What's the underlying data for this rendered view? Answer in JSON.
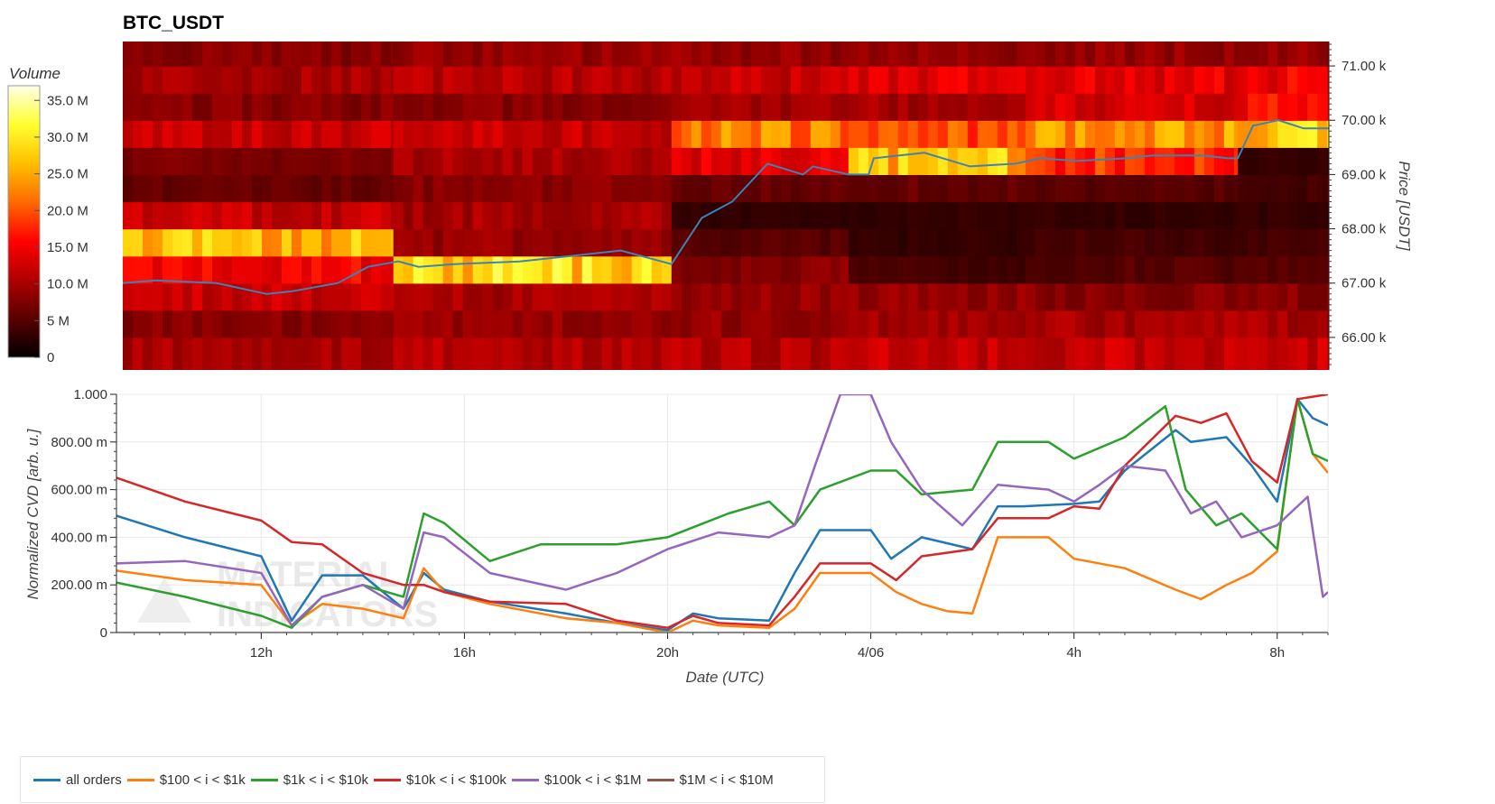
{
  "chart_data": [
    {
      "type": "heatmap",
      "title": "BTC_USDT",
      "ylabel": "Price [USDT]",
      "ylim": [
        65400,
        71450
      ],
      "y_ticks": [
        {
          "value": 66000,
          "label": "66.00 k"
        },
        {
          "value": 67000,
          "label": "67.00 k"
        },
        {
          "value": 68000,
          "label": "68.00 k"
        },
        {
          "value": 69000,
          "label": "69.00 k"
        },
        {
          "value": 70000,
          "label": "70.00 k"
        },
        {
          "value": 71000,
          "label": "71.00 k"
        }
      ],
      "colorbar": {
        "title": "Volume",
        "range": [
          0,
          37000000
        ],
        "ticks": [
          {
            "value": 0,
            "label": "0"
          },
          {
            "value": 5000000,
            "label": "5 M"
          },
          {
            "value": 10000000,
            "label": "10.0 M"
          },
          {
            "value": 15000000,
            "label": "15.0 M"
          },
          {
            "value": 20000000,
            "label": "20.0 M"
          },
          {
            "value": 25000000,
            "label": "25.0 M"
          },
          {
            "value": 30000000,
            "label": "30.0 M"
          },
          {
            "value": 35000000,
            "label": "35.0 M"
          }
        ],
        "colors": [
          "#000000",
          "#5a0000",
          "#b00000",
          "#ff0000",
          "#ff6a00",
          "#ffc000",
          "#ffff30",
          "#ffffe8"
        ]
      },
      "x_range": [
        -2.85,
        21.0
      ],
      "price_bins": [
        65400,
        66000,
        66500,
        67000,
        67500,
        68000,
        68500,
        69000,
        69500,
        70000,
        70500,
        71000,
        71450
      ],
      "volume_pattern": [
        {
          "x_start": -2.85,
          "x_end": 2.5,
          "levels": [
            10,
            8,
            12,
            15,
            26,
            12,
            6,
            7,
            12,
            8,
            10,
            8
          ]
        },
        {
          "x_start": 2.5,
          "x_end": 8.0,
          "levels": [
            11,
            9,
            10,
            28,
            9,
            10,
            8,
            10,
            12,
            8,
            11,
            9
          ]
        },
        {
          "x_start": 8.0,
          "x_end": 11.5,
          "levels": [
            11,
            9,
            9,
            8,
            5,
            3,
            6,
            14,
            22,
            10,
            12,
            9
          ]
        },
        {
          "x_start": 11.5,
          "x_end": 15.0,
          "levels": [
            12,
            10,
            9,
            4,
            3,
            3,
            6,
            26,
            20,
            10,
            14,
            9
          ]
        },
        {
          "x_start": 15.0,
          "x_end": 19.2,
          "levels": [
            12,
            10,
            8,
            5,
            4,
            3,
            5,
            18,
            24,
            13,
            14,
            9
          ]
        },
        {
          "x_start": 19.2,
          "x_end": 21.0,
          "levels": [
            12,
            10,
            8,
            5,
            4,
            3,
            4,
            3,
            28,
            16,
            15,
            9
          ]
        }
      ],
      "price_series": {
        "x": [
          -2.85,
          -2.2,
          -1.0,
          0.0,
          0.5,
          1.4,
          2.0,
          2.6,
          3.0,
          3.7,
          5.0,
          6.0,
          7.0,
          8.0,
          8.6,
          9.2,
          9.9,
          10.6,
          10.8,
          11.5,
          11.9,
          12.0,
          13.0,
          13.9,
          14.8,
          15.3,
          16.0,
          17.0,
          17.5,
          18.5,
          19.0,
          19.2,
          19.5,
          20.0,
          20.5,
          21.0
        ],
        "y": [
          67000,
          67050,
          67000,
          66800,
          66850,
          67000,
          67300,
          67400,
          67300,
          67350,
          67400,
          67500,
          67600,
          67350,
          68200,
          68500,
          69200,
          69000,
          69150,
          69000,
          69000,
          69300,
          69400,
          69150,
          69200,
          69300,
          69250,
          69300,
          69350,
          69350,
          69300,
          69300,
          69900,
          70000,
          69850,
          69850
        ]
      }
    },
    {
      "type": "line",
      "xlabel": "Date (UTC)",
      "ylabel": "Normalized CVD [arb. u.]",
      "ylim": [
        0,
        1.0
      ],
      "xlim": [
        -2.85,
        21.0
      ],
      "x_ticks": [
        {
          "value": 0,
          "label": "12h"
        },
        {
          "value": 4,
          "label": "16h"
        },
        {
          "value": 8,
          "label": "20h"
        },
        {
          "value": 12,
          "label": "4/06"
        },
        {
          "value": 16,
          "label": "4h"
        },
        {
          "value": 20,
          "label": "8h"
        }
      ],
      "y_ticks": [
        {
          "value": 0,
          "label": "0"
        },
        {
          "value": 0.2,
          "label": "200.00 m"
        },
        {
          "value": 0.4,
          "label": "400.00 m"
        },
        {
          "value": 0.6,
          "label": "600.00 m"
        },
        {
          "value": 0.8,
          "label": "800.00 m"
        },
        {
          "value": 1.0,
          "label": "1.000"
        }
      ],
      "series": [
        {
          "name": "all orders",
          "color": "#1f77b4",
          "x": [
            -2.85,
            -1.5,
            0.0,
            0.6,
            1.2,
            2.0,
            2.8,
            3.2,
            3.6,
            4.5,
            6.0,
            7.0,
            8.0,
            8.5,
            9.0,
            10.0,
            10.5,
            11.0,
            12.0,
            12.4,
            13.0,
            14.0,
            14.5,
            15.0,
            16.0,
            16.5,
            17.0,
            18.0,
            18.3,
            19.0,
            19.5,
            20.0,
            20.4,
            20.7,
            21.0
          ],
          "y": [
            0.49,
            0.4,
            0.32,
            0.05,
            0.24,
            0.24,
            0.1,
            0.25,
            0.18,
            0.13,
            0.08,
            0.04,
            0.01,
            0.08,
            0.06,
            0.05,
            0.25,
            0.43,
            0.43,
            0.31,
            0.4,
            0.35,
            0.53,
            0.53,
            0.54,
            0.55,
            0.68,
            0.85,
            0.8,
            0.82,
            0.7,
            0.55,
            0.98,
            0.9,
            0.87
          ]
        },
        {
          "name": "$100 < i < $1k",
          "color": "#ff7f0e",
          "x": [
            -2.85,
            -1.5,
            0.0,
            0.6,
            1.2,
            2.0,
            2.8,
            3.2,
            3.6,
            4.5,
            6.0,
            7.0,
            8.0,
            8.5,
            9.0,
            10.0,
            10.5,
            11.0,
            12.0,
            12.5,
            13.0,
            13.5,
            14.0,
            14.5,
            15.5,
            16.0,
            17.0,
            18.0,
            18.5,
            19.0,
            19.5,
            20.0,
            20.4,
            20.7,
            21.0
          ],
          "y": [
            0.26,
            0.22,
            0.2,
            0.03,
            0.12,
            0.1,
            0.06,
            0.27,
            0.17,
            0.12,
            0.06,
            0.04,
            0.0,
            0.05,
            0.03,
            0.02,
            0.1,
            0.25,
            0.25,
            0.17,
            0.12,
            0.09,
            0.08,
            0.4,
            0.4,
            0.31,
            0.27,
            0.18,
            0.14,
            0.2,
            0.25,
            0.34,
            0.98,
            0.75,
            0.67
          ]
        },
        {
          "name": "$1k < i < $10k",
          "color": "#2ca02c",
          "x": [
            -2.85,
            -1.5,
            0.0,
            0.6,
            1.2,
            2.0,
            2.8,
            3.2,
            3.6,
            4.5,
            5.5,
            7.0,
            8.0,
            8.6,
            9.2,
            10.0,
            10.5,
            11.0,
            12.0,
            12.5,
            13.0,
            14.0,
            14.5,
            15.5,
            16.0,
            17.0,
            17.8,
            18.2,
            18.8,
            19.3,
            20.0,
            20.4,
            20.7,
            21.0
          ],
          "y": [
            0.21,
            0.15,
            0.07,
            0.02,
            0.15,
            0.2,
            0.15,
            0.5,
            0.46,
            0.3,
            0.37,
            0.37,
            0.4,
            0.45,
            0.5,
            0.55,
            0.45,
            0.6,
            0.68,
            0.68,
            0.58,
            0.6,
            0.8,
            0.8,
            0.73,
            0.82,
            0.95,
            0.6,
            0.45,
            0.5,
            0.35,
            0.98,
            0.75,
            0.72
          ]
        },
        {
          "name": "$10k < i < $100k",
          "color": "#d62728",
          "x": [
            -2.85,
            -1.5,
            0.0,
            0.6,
            1.2,
            2.0,
            2.8,
            3.2,
            3.6,
            4.5,
            6.0,
            7.0,
            8.0,
            8.5,
            9.0,
            10.0,
            10.5,
            11.0,
            12.0,
            12.5,
            13.0,
            14.0,
            14.5,
            15.5,
            16.0,
            16.5,
            17.0,
            18.0,
            18.5,
            19.0,
            19.5,
            20.0,
            20.4,
            20.7,
            21.0
          ],
          "y": [
            0.65,
            0.55,
            0.47,
            0.38,
            0.37,
            0.25,
            0.2,
            0.2,
            0.17,
            0.13,
            0.12,
            0.05,
            0.02,
            0.07,
            0.04,
            0.03,
            0.15,
            0.29,
            0.29,
            0.22,
            0.32,
            0.35,
            0.48,
            0.48,
            0.53,
            0.52,
            0.7,
            0.91,
            0.88,
            0.92,
            0.72,
            0.63,
            0.98,
            0.99,
            1.0
          ]
        },
        {
          "name": "$100k < i < $1M",
          "color": "#9467bd",
          "x": [
            -2.85,
            -1.5,
            0.0,
            0.6,
            1.2,
            2.0,
            2.8,
            3.2,
            3.6,
            4.5,
            6.0,
            7.0,
            8.0,
            9.0,
            10.0,
            10.5,
            10.9,
            11.4,
            12.0,
            12.4,
            13.0,
            13.8,
            14.5,
            15.5,
            16.0,
            16.5,
            17.0,
            17.8,
            18.3,
            18.8,
            19.3,
            20.0,
            20.6,
            20.9,
            21.0
          ],
          "y": [
            0.29,
            0.3,
            0.25,
            0.03,
            0.15,
            0.2,
            0.1,
            0.42,
            0.4,
            0.25,
            0.18,
            0.25,
            0.35,
            0.42,
            0.4,
            0.45,
            0.7,
            1.0,
            1.0,
            0.8,
            0.6,
            0.45,
            0.62,
            0.6,
            0.55,
            0.62,
            0.7,
            0.68,
            0.5,
            0.55,
            0.4,
            0.45,
            0.57,
            0.15,
            0.17
          ]
        },
        {
          "name": "$1M < i < $10M",
          "color": "#8c564b",
          "x": [],
          "y": []
        }
      ],
      "watermark": "MATERIAL INDICATORS"
    }
  ]
}
